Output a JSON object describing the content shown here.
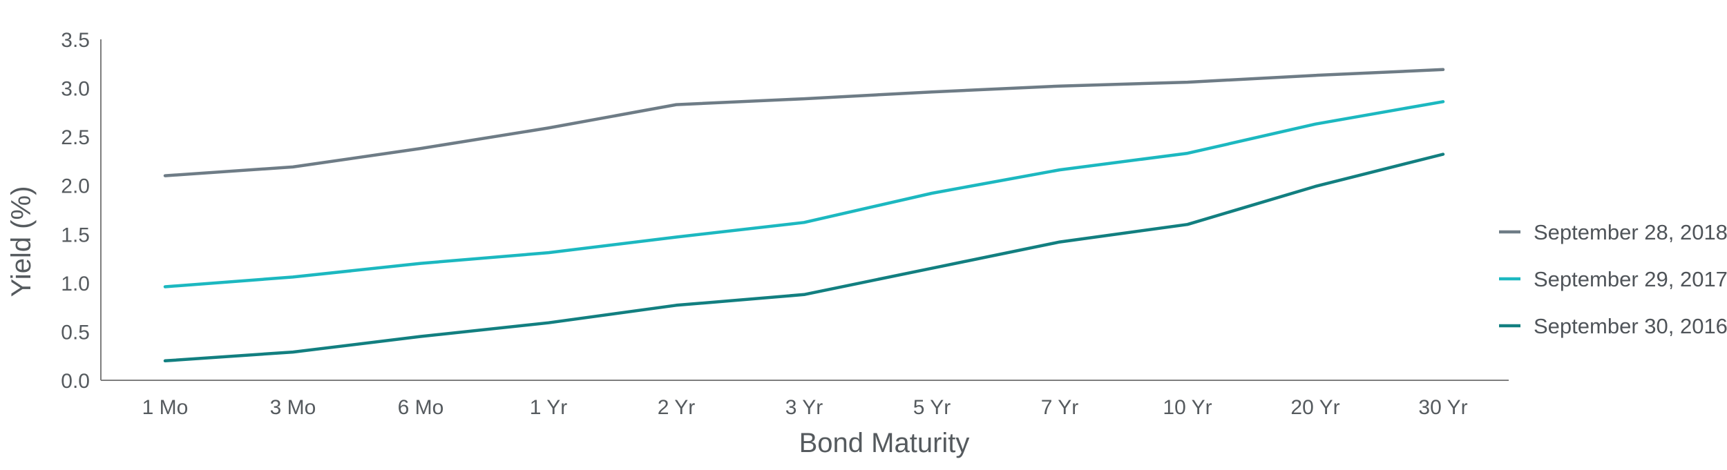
{
  "chart_data": {
    "type": "line",
    "title": "",
    "xlabel": "Bond Maturity",
    "ylabel": "Yield (%)",
    "categories": [
      "1 Mo",
      "3 Mo",
      "6 Mo",
      "1 Yr",
      "2 Yr",
      "3 Yr",
      "5 Yr",
      "7 Yr",
      "10 Yr",
      "20 Yr",
      "30 Yr"
    ],
    "ylim": [
      0,
      3.5
    ],
    "yticks": [
      "0.0",
      "0.5",
      "1.0",
      "1.5",
      "2.0",
      "2.5",
      "3.0",
      "3.5"
    ],
    "grid": false,
    "legend_position": "right",
    "series": [
      {
        "name": "September 28, 2018",
        "color": "#6e7c86",
        "values": [
          2.1,
          2.19,
          2.38,
          2.59,
          2.83,
          2.89,
          2.96,
          3.02,
          3.06,
          3.13,
          3.19
        ]
      },
      {
        "name": "September 29, 2017",
        "color": "#1cb8c0",
        "values": [
          0.96,
          1.06,
          1.2,
          1.31,
          1.47,
          1.62,
          1.92,
          2.16,
          2.33,
          2.63,
          2.86
        ]
      },
      {
        "name": "September 30, 2016",
        "color": "#127f80",
        "values": [
          0.2,
          0.29,
          0.45,
          0.59,
          0.77,
          0.88,
          1.15,
          1.42,
          1.6,
          1.99,
          2.32
        ]
      }
    ]
  }
}
